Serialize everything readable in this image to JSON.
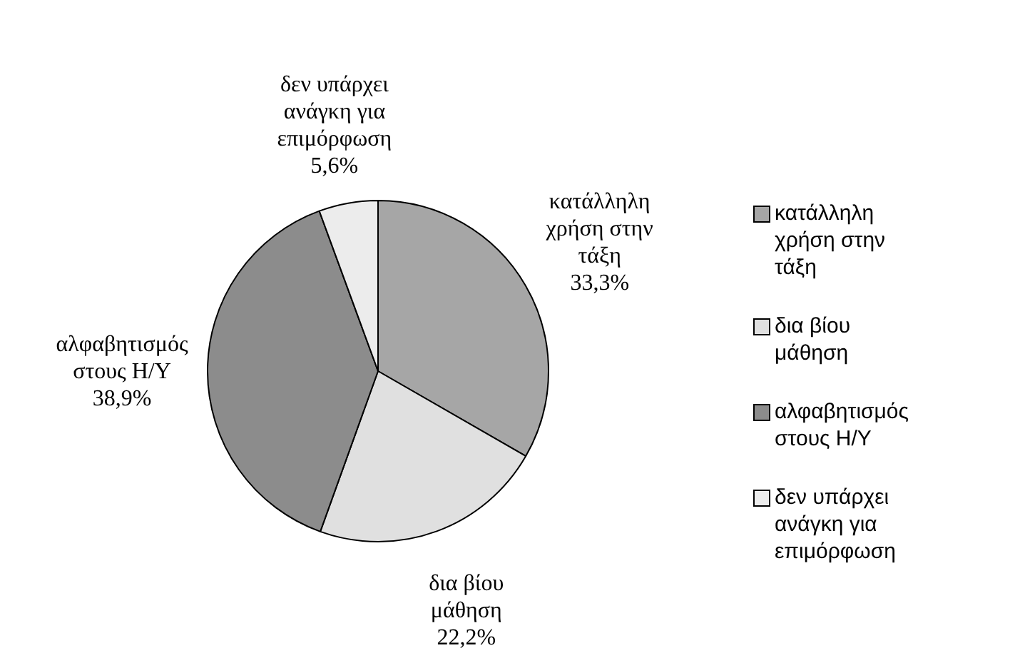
{
  "chart_data": {
    "type": "pie",
    "categories": [
      "κατάλληλη χρήση στην τάξη",
      "δια βίου μάθηση",
      "αλφαβητισμός στους Η/Υ",
      "δεν υπάρχει ανάγκη για επιμόρφωση"
    ],
    "values": [
      33.3,
      22.2,
      38.9,
      5.6
    ],
    "colors": [
      "#a6a6a6",
      "#e0e0e0",
      "#8c8c8c",
      "#ececec"
    ],
    "value_labels": [
      "33,3%",
      "22,2%",
      "38,9%",
      "5,6%"
    ],
    "legend": "right"
  }
}
